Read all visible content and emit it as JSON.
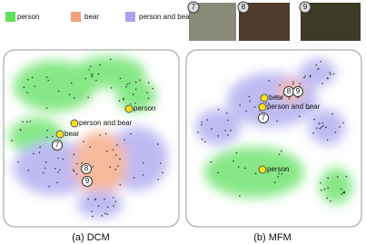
{
  "legend": [
    {
      "label": "person",
      "color": "#5fe05f"
    },
    {
      "label": "bear",
      "color": "#f2a27c"
    },
    {
      "label": "person and bear",
      "color": "#a9a4ee"
    }
  ],
  "thumbnails": [
    {
      "label": "7"
    },
    {
      "label": "8"
    },
    {
      "label": "9"
    }
  ],
  "panels": [
    {
      "caption": "(a) DCM",
      "labels": [
        {
          "text": "person"
        },
        {
          "text": "person and bear"
        },
        {
          "text": "bear"
        }
      ],
      "markers": [
        "7",
        "8",
        "9"
      ]
    },
    {
      "caption": "(b) MFM",
      "labels": [
        {
          "text": "bear"
        },
        {
          "text": "person and bear"
        },
        {
          "text": "person"
        }
      ],
      "markers": [
        "7",
        "8",
        "9"
      ]
    }
  ]
}
